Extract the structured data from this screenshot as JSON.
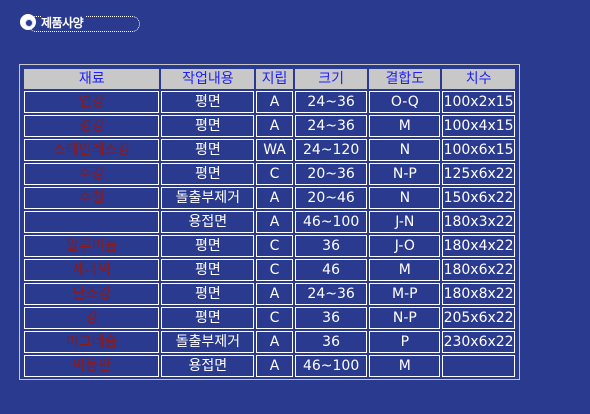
{
  "section": {
    "title": "제품사양",
    "icon": "circle-bullet-icon"
  },
  "table": {
    "headers": [
      "재료",
      "작업내용",
      "지립",
      "크기",
      "결합도",
      "치수"
    ],
    "rows": [
      [
        "연강",
        "평면",
        "A",
        "24~36",
        "O-Q",
        "100x2x15"
      ],
      [
        "경강",
        "평면",
        "A",
        "24~36",
        "M",
        "100x4x15"
      ],
      [
        "스테인레스강",
        "평면",
        "WA",
        "24~120",
        "N",
        "100x6x15"
      ],
      [
        "주강",
        "평면",
        "C",
        "20~36",
        "N-P",
        "125x6x22"
      ],
      [
        "주철",
        "돌출부제거",
        "A",
        "20~46",
        "N",
        "150x6x22"
      ],
      [
        "",
        "용접면",
        "A",
        "46~100",
        "J-N",
        "180x3x22"
      ],
      [
        "알루미늄",
        "평면",
        "C",
        "36",
        "J-O",
        "180x4x22"
      ],
      [
        "세라믹",
        "평면",
        "C",
        "46",
        "M",
        "180x6x22"
      ],
      [
        "단조강",
        "평면",
        "A",
        "24~36",
        "M-P",
        "180x8x22"
      ],
      [
        "강",
        "평면",
        "C",
        "36",
        "N-P",
        "205x6x22"
      ],
      [
        "마그네슘",
        "돌출부제거",
        "A",
        "36",
        "P",
        "230x6x22"
      ],
      [
        "박동판",
        "용접면",
        "A",
        "46~100",
        "M",
        ""
      ]
    ]
  },
  "colors": {
    "background": "#2a3a8e",
    "header_bg": "#c8c8c8",
    "header_text": "#2020ff",
    "material_text": "#8b1a1a",
    "cell_text": "#ffffff"
  }
}
